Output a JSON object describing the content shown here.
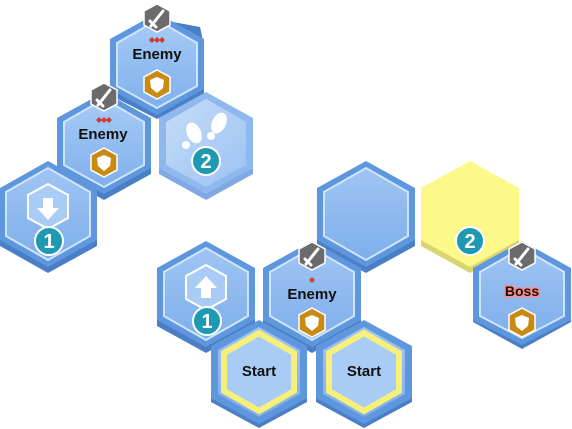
{
  "board": {
    "tiles": [
      {
        "id": "enemy-top",
        "type": "enemy",
        "label": "Enemy",
        "threat": 3,
        "shield": true
      },
      {
        "id": "enemy-left",
        "type": "enemy",
        "label": "Enemy",
        "threat": 3,
        "shield": true
      },
      {
        "id": "steps-2",
        "type": "footsteps",
        "badge": "2"
      },
      {
        "id": "down-1",
        "type": "arrow-down",
        "badge": "1"
      },
      {
        "id": "empty-blue",
        "type": "empty"
      },
      {
        "id": "yellow-2",
        "type": "highlight",
        "badge": "2"
      },
      {
        "id": "up-1",
        "type": "arrow-up",
        "badge": "1"
      },
      {
        "id": "enemy-mid",
        "type": "enemy",
        "label": "Enemy",
        "threat": 1,
        "shield": true
      },
      {
        "id": "boss",
        "type": "boss",
        "label": "Boss",
        "shield": true
      },
      {
        "id": "start-left",
        "type": "start",
        "label": "Start"
      },
      {
        "id": "start-right",
        "type": "start",
        "label": "Start"
      }
    ]
  },
  "colors": {
    "tile_face": "#8cb8f0",
    "tile_rim": "#5f97de",
    "tile_shadow": "#4a7fc6",
    "highlight": "#fcf88a",
    "badge": "#1f98b2",
    "sword_badge": "#6b6b6b",
    "shield_badge": "#c98a12",
    "threat": "#d03a2a"
  }
}
